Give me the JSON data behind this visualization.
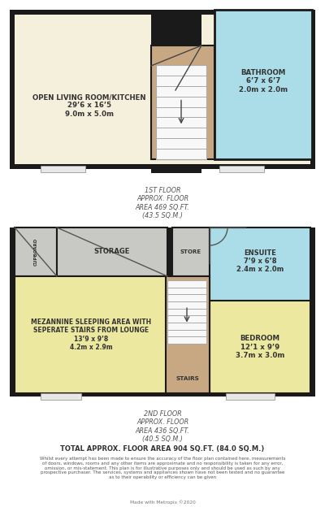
{
  "bg_color": "#ffffff",
  "wall_color": "#1a1a1a",
  "room_cream": "#f5f0dc",
  "room_blue": "#aadde8",
  "room_tan": "#c8a882",
  "room_gray": "#c8c8c4",
  "room_yellow": "#ede8a0",
  "floor1": {
    "label": "1ST FLOOR\nAPPROX. FLOOR\nAREA 469 SQ.FT.\n(43.5 SQ.M.)",
    "living_label": "OPEN LIVING ROOM/KITCHEN\n29’6 x 16’5\n9.0m x 5.0m",
    "bath_label": "BATHROOM\n6’7 x 6’7\n2.0m x 2.0m"
  },
  "floor2": {
    "label": "2ND FLOOR\nAPPROX. FLOOR\nAREA 436 SQ.FT.\n(40.5 SQ.M.)",
    "mezz_label": "MEZANNINE SLEEPING AREA WITH\nSEPERATE STAIRS FROM LOUNGE\n13’9 x 9’8\n4.2m x 2.9m",
    "storage_label": "STORAGE",
    "store_label": "STORE",
    "cupboard_label": "CUPBOARD",
    "ensuite_label": "ENSUITE\n7’9 x 6’8\n2.4m x 2.0m",
    "bedroom_label": "BEDROOM\n12’1 x 9’9\n3.7m x 3.0m",
    "stairs_label": "STAIRS"
  },
  "disclaimer": "Whilst every attempt has been made to ensure the accuracy of the floor plan contained here, measurements\nof doors, windows, rooms and any other items are approximate and no responsibility is taken for any error,\nomission, or mis-statement. This plan is for illustrative purposes only and should be used as such by any\nprospective purchaser. The services, systems and appliances shown have not been tested and no guarantee\nas to their operability or efficiency can be given",
  "made_with": "Made with Metropix ©2020",
  "total_label": "TOTAL APPROX. FLOOR AREA 904 SQ.FT. (84.0 SQ.M.)"
}
